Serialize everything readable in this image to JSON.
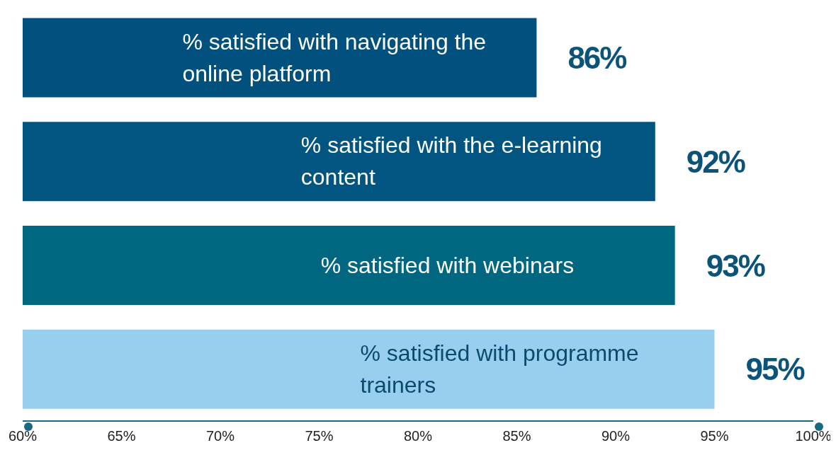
{
  "chart_data": {
    "type": "bar",
    "orientation": "horizontal",
    "categories": [
      "% satisfied with navigating the online platform",
      "% satisfied with the e-learning content",
      "% satisfied with webinars",
      "% satisfied with programme trainers"
    ],
    "values": [
      86,
      92,
      93,
      95
    ],
    "colors": [
      "#01507e",
      "#015580",
      "#016680",
      "#98cfef"
    ],
    "value_labels": [
      "86%",
      "92%",
      "93%",
      "95%"
    ],
    "xlim": [
      60,
      100
    ],
    "xticks": [
      {
        "value": 60,
        "label": "60%"
      },
      {
        "value": 65,
        "label": "65%"
      },
      {
        "value": 70,
        "label": "70%"
      },
      {
        "value": 75,
        "label": "75%"
      },
      {
        "value": 80,
        "label": "80%"
      },
      {
        "value": 85,
        "label": "85%"
      },
      {
        "value": 90,
        "label": "90%"
      },
      {
        "value": 95,
        "label": "95%"
      },
      {
        "value": 100,
        "label": "100%"
      }
    ],
    "grid": false,
    "legend": false
  }
}
